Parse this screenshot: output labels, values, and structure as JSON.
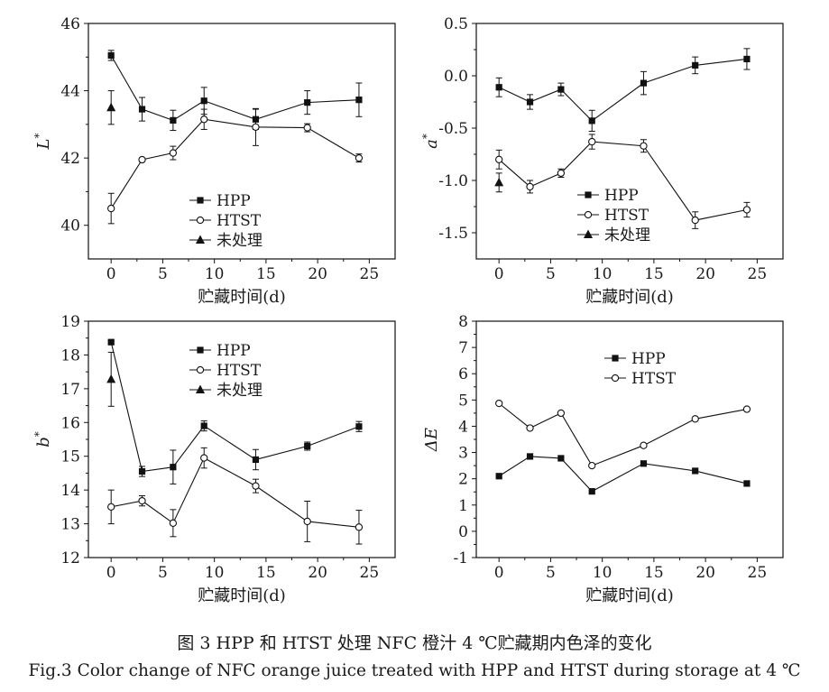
{
  "figure": {
    "caption_zh": "图 3   HPP 和 HTST 处理 NFC 橙汁 4 ℃贮藏期内色泽的变化",
    "caption_en": "Fig.3   Color change of NFC orange juice treated with HPP and HTST during storage at 4 ℃"
  },
  "chart_data": [
    {
      "type": "line",
      "id": "L",
      "ylabel_main": "L",
      "ylabel_sup": "*",
      "xlabel": "贮藏时间(d)",
      "xlim": [
        -2.2,
        27.5
      ],
      "ylim": [
        39,
        46
      ],
      "xticks": [
        0,
        5,
        10,
        15,
        20,
        25
      ],
      "yticks": [
        40,
        42,
        44,
        46
      ],
      "legend_position": "lower-center",
      "series": [
        {
          "name": "HPP",
          "marker": "square",
          "x": [
            0,
            3,
            6,
            9,
            14,
            19,
            24
          ],
          "y": [
            45.05,
            43.45,
            43.12,
            43.7,
            43.15,
            43.65,
            43.73
          ],
          "err": [
            0.15,
            0.35,
            0.3,
            0.4,
            0.3,
            0.35,
            0.5
          ]
        },
        {
          "name": "HTST",
          "marker": "circle",
          "x": [
            0,
            3,
            6,
            9,
            14,
            19,
            24
          ],
          "y": [
            40.5,
            41.95,
            42.15,
            43.15,
            42.92,
            42.9,
            42.0
          ],
          "err": [
            0.45,
            0.05,
            0.2,
            0.3,
            0.55,
            0.12,
            0.12
          ]
        },
        {
          "name": "未处理",
          "marker": "triangle",
          "x": [
            0
          ],
          "y": [
            43.5
          ],
          "err": [
            0.5
          ]
        }
      ]
    },
    {
      "type": "line",
      "id": "a",
      "ylabel_main": "a",
      "ylabel_sup": "*",
      "xlabel": "贮藏时间(d)",
      "xlim": [
        -2.2,
        27.5
      ],
      "ylim": [
        -1.75,
        0.5
      ],
      "xticks": [
        0,
        5,
        10,
        15,
        20,
        25
      ],
      "yticks": [
        0.5,
        0.0,
        -0.5,
        -1.0,
        -1.5
      ],
      "ytick_labels": [
        "0.5",
        "0.0",
        "-0.5",
        "-1.0",
        "-1.5"
      ],
      "legend_position": "lower-center",
      "series": [
        {
          "name": "HPP",
          "marker": "square",
          "x": [
            0,
            3,
            6,
            9,
            14,
            19,
            24
          ],
          "y": [
            -0.11,
            -0.25,
            -0.13,
            -0.43,
            -0.07,
            0.1,
            0.16
          ],
          "err": [
            0.09,
            0.07,
            0.06,
            0.1,
            0.11,
            0.08,
            0.1
          ]
        },
        {
          "name": "HTST",
          "marker": "circle",
          "x": [
            0,
            3,
            6,
            9,
            14,
            19,
            24
          ],
          "y": [
            -0.8,
            -1.06,
            -0.93,
            -0.63,
            -0.67,
            -1.38,
            -1.28
          ],
          "err": [
            0.09,
            0.06,
            0.04,
            0.07,
            0.06,
            0.08,
            0.07
          ]
        },
        {
          "name": "未处理",
          "marker": "triangle",
          "x": [
            0
          ],
          "y": [
            -1.02
          ],
          "err": [
            0.09
          ]
        }
      ]
    },
    {
      "type": "line",
      "id": "b",
      "ylabel_main": "b",
      "ylabel_sup": "*",
      "xlabel": "贮藏时间(d)",
      "xlim": [
        -2.2,
        27.5
      ],
      "ylim": [
        12,
        19
      ],
      "xticks": [
        0,
        5,
        10,
        15,
        20,
        25
      ],
      "yticks": [
        12,
        13,
        14,
        15,
        16,
        17,
        18,
        19
      ],
      "legend_position": "upper-center",
      "series": [
        {
          "name": "HPP",
          "marker": "square",
          "x": [
            0,
            3,
            6,
            9,
            14,
            19,
            24
          ],
          "y": [
            18.38,
            14.55,
            14.68,
            15.9,
            14.9,
            15.3,
            15.88
          ],
          "err": [
            0.05,
            0.15,
            0.5,
            0.15,
            0.3,
            0.12,
            0.15
          ]
        },
        {
          "name": "HTST",
          "marker": "circle",
          "x": [
            0,
            3,
            6,
            9,
            14,
            19,
            24
          ],
          "y": [
            13.5,
            13.68,
            13.02,
            14.95,
            14.12,
            13.07,
            12.9
          ],
          "err": [
            0.5,
            0.15,
            0.4,
            0.3,
            0.2,
            0.6,
            0.5
          ]
        },
        {
          "name": "未处理",
          "marker": "triangle",
          "x": [
            0
          ],
          "y": [
            17.28
          ],
          "err": [
            0.8
          ]
        }
      ]
    },
    {
      "type": "line",
      "id": "dE",
      "ylabel_main": "ΔE",
      "ylabel_sup": "",
      "xlabel": "贮藏时间(d)",
      "xlim": [
        -2.2,
        27.5
      ],
      "ylim": [
        -1,
        8
      ],
      "xticks": [
        0,
        5,
        10,
        15,
        20,
        25
      ],
      "yticks": [
        -1,
        0,
        1,
        2,
        3,
        4,
        5,
        6,
        7,
        8
      ],
      "legend_position": "upper-center",
      "series": [
        {
          "name": "HPP",
          "marker": "square",
          "x": [
            0,
            3,
            6,
            9,
            14,
            19,
            24
          ],
          "y": [
            2.1,
            2.85,
            2.78,
            1.52,
            2.58,
            2.3,
            1.82
          ],
          "err": []
        },
        {
          "name": "HTST",
          "marker": "circle",
          "x": [
            0,
            3,
            6,
            9,
            14,
            19,
            24
          ],
          "y": [
            4.87,
            3.93,
            4.5,
            2.5,
            3.27,
            4.28,
            4.65
          ],
          "err": []
        }
      ]
    }
  ]
}
